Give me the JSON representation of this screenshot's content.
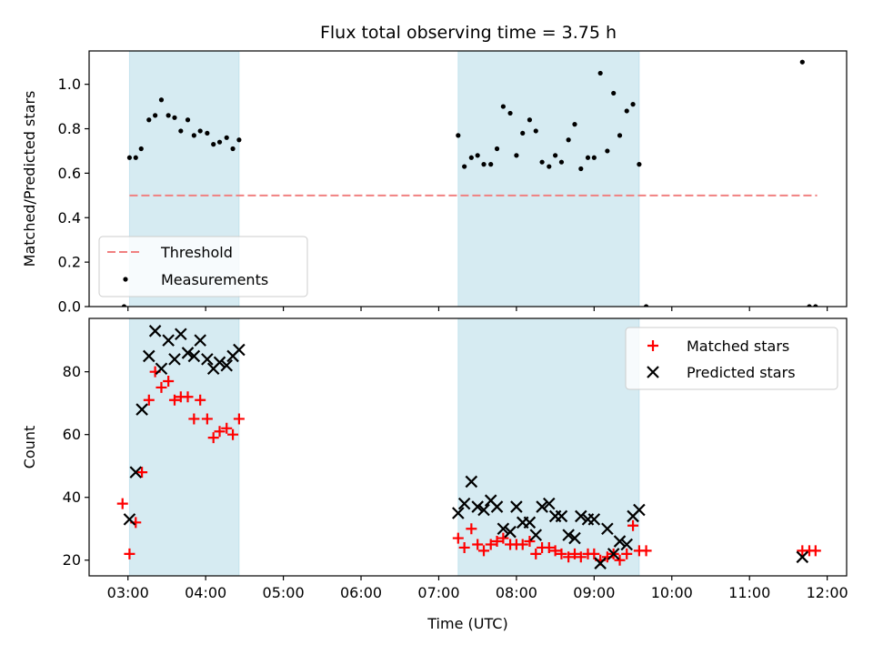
{
  "chart_data": [
    {
      "type": "scatter",
      "title": "Flux total observing time = 3.75 h",
      "ylabel": "Matched/Predicted stars",
      "xlabel": "",
      "xlim": [
        2.5,
        12.25
      ],
      "ylim": [
        0,
        1.15
      ],
      "yticks": [
        0.0,
        0.2,
        0.4,
        0.6,
        0.8,
        1.0
      ],
      "yticklabels": [
        "0.0",
        "0.2",
        "0.4",
        "0.6",
        "0.8",
        "1.0"
      ],
      "shaded_ranges": [
        [
          3.02,
          4.43
        ],
        [
          7.25,
          9.58
        ]
      ],
      "shade_color": "#add8e6",
      "threshold": {
        "name": "Threshold",
        "y": 0.5,
        "x_range": [
          3.02,
          11.87
        ],
        "color": "#f08080"
      },
      "legend": {
        "position": "lower-left",
        "entries": [
          "Threshold",
          "Measurements"
        ]
      },
      "series": [
        {
          "name": "Measurements",
          "color": "#000000",
          "points": [
            [
              2.95,
              0.0
            ],
            [
              3.02,
              0.67
            ],
            [
              3.1,
              0.67
            ],
            [
              3.17,
              0.71
            ],
            [
              3.27,
              0.84
            ],
            [
              3.35,
              0.86
            ],
            [
              3.43,
              0.93
            ],
            [
              3.52,
              0.86
            ],
            [
              3.6,
              0.85
            ],
            [
              3.68,
              0.79
            ],
            [
              3.77,
              0.84
            ],
            [
              3.85,
              0.77
            ],
            [
              3.93,
              0.79
            ],
            [
              4.02,
              0.78
            ],
            [
              4.1,
              0.73
            ],
            [
              4.18,
              0.74
            ],
            [
              4.27,
              0.76
            ],
            [
              4.35,
              0.71
            ],
            [
              4.43,
              0.75
            ],
            [
              7.25,
              0.77
            ],
            [
              7.33,
              0.63
            ],
            [
              7.42,
              0.67
            ],
            [
              7.5,
              0.68
            ],
            [
              7.58,
              0.64
            ],
            [
              7.67,
              0.64
            ],
            [
              7.75,
              0.71
            ],
            [
              7.83,
              0.9
            ],
            [
              7.92,
              0.87
            ],
            [
              8.0,
              0.68
            ],
            [
              8.08,
              0.78
            ],
            [
              8.17,
              0.84
            ],
            [
              8.25,
              0.79
            ],
            [
              8.33,
              0.65
            ],
            [
              8.42,
              0.63
            ],
            [
              8.5,
              0.68
            ],
            [
              8.58,
              0.65
            ],
            [
              8.67,
              0.75
            ],
            [
              8.75,
              0.82
            ],
            [
              8.83,
              0.62
            ],
            [
              8.92,
              0.67
            ],
            [
              9.0,
              0.67
            ],
            [
              9.08,
              1.05
            ],
            [
              9.17,
              0.7
            ],
            [
              9.25,
              0.96
            ],
            [
              9.33,
              0.77
            ],
            [
              9.42,
              0.88
            ],
            [
              9.5,
              0.91
            ],
            [
              9.58,
              0.64
            ],
            [
              9.67,
              0.0
            ],
            [
              11.68,
              1.1
            ],
            [
              11.77,
              0.0
            ],
            [
              11.85,
              0.0
            ]
          ]
        }
      ]
    },
    {
      "type": "scatter",
      "title": "",
      "ylabel": "Count",
      "xlabel": "Time (UTC)",
      "xlim": [
        2.5,
        12.25
      ],
      "ylim": [
        15,
        97
      ],
      "yticks": [
        20,
        40,
        60,
        80
      ],
      "yticklabels": [
        "20",
        "40",
        "60",
        "80"
      ],
      "xticks": [
        3,
        4,
        5,
        6,
        7,
        8,
        9,
        10,
        11,
        12
      ],
      "xticklabels": [
        "03:00",
        "04:00",
        "05:00",
        "06:00",
        "07:00",
        "08:00",
        "09:00",
        "10:00",
        "11:00",
        "12:00"
      ],
      "shaded_ranges": [
        [
          3.02,
          4.43
        ],
        [
          7.25,
          9.58
        ]
      ],
      "shade_color": "#add8e6",
      "legend": {
        "position": "top-right",
        "entries": [
          "Matched stars",
          "Predicted stars"
        ]
      },
      "series": [
        {
          "name": "Matched stars",
          "marker": "plus",
          "color": "#ff0000",
          "points": [
            [
              2.93,
              38
            ],
            [
              3.02,
              22
            ],
            [
              3.1,
              32
            ],
            [
              3.18,
              48
            ],
            [
              3.27,
              71
            ],
            [
              3.35,
              80
            ],
            [
              3.43,
              75
            ],
            [
              3.52,
              77
            ],
            [
              3.6,
              71
            ],
            [
              3.68,
              72
            ],
            [
              3.77,
              72
            ],
            [
              3.85,
              65
            ],
            [
              3.93,
              71
            ],
            [
              4.02,
              65
            ],
            [
              4.1,
              59
            ],
            [
              4.18,
              61
            ],
            [
              4.27,
              62
            ],
            [
              4.35,
              60
            ],
            [
              4.43,
              65
            ],
            [
              7.25,
              27
            ],
            [
              7.33,
              24
            ],
            [
              7.42,
              30
            ],
            [
              7.5,
              25
            ],
            [
              7.58,
              23
            ],
            [
              7.67,
              25
            ],
            [
              7.75,
              26
            ],
            [
              7.83,
              27
            ],
            [
              7.92,
              25
            ],
            [
              8.0,
              25
            ],
            [
              8.08,
              25
            ],
            [
              8.17,
              26
            ],
            [
              8.25,
              22
            ],
            [
              8.33,
              24
            ],
            [
              8.42,
              24
            ],
            [
              8.5,
              23
            ],
            [
              8.58,
              22
            ],
            [
              8.67,
              21
            ],
            [
              8.75,
              22
            ],
            [
              8.83,
              21
            ],
            [
              8.92,
              22
            ],
            [
              9.0,
              22
            ],
            [
              9.08,
              20
            ],
            [
              9.17,
              21
            ],
            [
              9.25,
              22
            ],
            [
              9.33,
              20
            ],
            [
              9.42,
              22
            ],
            [
              9.5,
              31
            ],
            [
              9.58,
              23
            ],
            [
              9.67,
              23
            ],
            [
              11.68,
              23
            ],
            [
              11.77,
              23
            ],
            [
              11.85,
              23
            ]
          ]
        },
        {
          "name": "Predicted stars",
          "marker": "x",
          "color": "#000000",
          "points": [
            [
              3.02,
              33
            ],
            [
              3.1,
              48
            ],
            [
              3.18,
              68
            ],
            [
              3.27,
              85
            ],
            [
              3.35,
              93
            ],
            [
              3.43,
              81
            ],
            [
              3.52,
              90
            ],
            [
              3.6,
              84
            ],
            [
              3.68,
              92
            ],
            [
              3.77,
              86
            ],
            [
              3.85,
              85
            ],
            [
              3.93,
              90
            ],
            [
              4.02,
              84
            ],
            [
              4.1,
              81
            ],
            [
              4.18,
              83
            ],
            [
              4.27,
              82
            ],
            [
              4.35,
              85
            ],
            [
              4.43,
              87
            ],
            [
              7.25,
              35
            ],
            [
              7.33,
              38
            ],
            [
              7.42,
              45
            ],
            [
              7.5,
              37
            ],
            [
              7.58,
              36
            ],
            [
              7.67,
              39
            ],
            [
              7.75,
              37
            ],
            [
              7.83,
              30
            ],
            [
              7.92,
              29
            ],
            [
              8.0,
              37
            ],
            [
              8.08,
              32
            ],
            [
              8.17,
              32
            ],
            [
              8.25,
              28
            ],
            [
              8.33,
              37
            ],
            [
              8.42,
              38
            ],
            [
              8.5,
              34
            ],
            [
              8.58,
              34
            ],
            [
              8.67,
              28
            ],
            [
              8.75,
              27
            ],
            [
              8.83,
              34
            ],
            [
              8.92,
              33
            ],
            [
              9.0,
              33
            ],
            [
              9.08,
              19
            ],
            [
              9.17,
              30
            ],
            [
              9.25,
              22
            ],
            [
              9.33,
              26
            ],
            [
              9.42,
              25
            ],
            [
              9.5,
              34
            ],
            [
              9.58,
              36
            ],
            [
              11.68,
              21
            ]
          ]
        }
      ]
    }
  ]
}
